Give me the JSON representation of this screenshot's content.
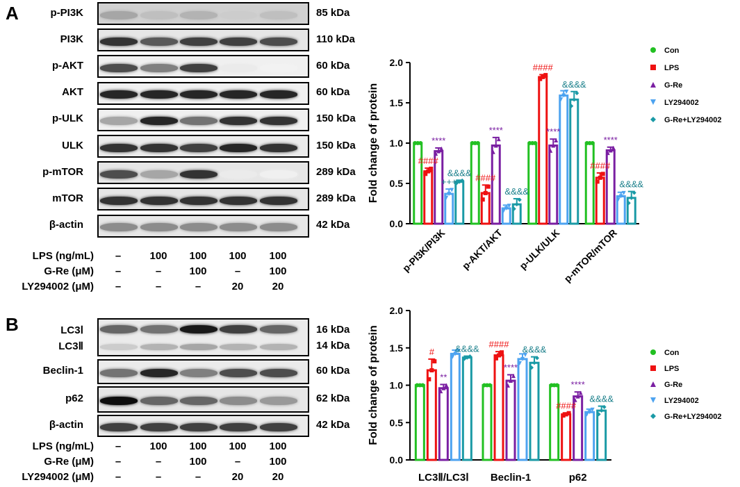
{
  "panel_a": {
    "letter": "A",
    "blots": [
      {
        "label": "p-PI3K",
        "kda": "85 kDa",
        "bands": [
          0.35,
          0.25,
          0.3,
          0.2,
          0.25
        ],
        "bg": 0.82
      },
      {
        "label": "PI3K",
        "kda": "110 kDa",
        "bands": [
          0.8,
          0.65,
          0.75,
          0.75,
          0.7
        ],
        "bg": 0.9
      },
      {
        "label": "p-AKT",
        "kda": "60 kDa",
        "bands": [
          0.7,
          0.5,
          0.75,
          0.08,
          0.05
        ],
        "bg": 0.94
      },
      {
        "label": "AKT",
        "kda": "60 kDa",
        "bands": [
          0.85,
          0.85,
          0.85,
          0.85,
          0.85
        ],
        "bg": 0.94
      },
      {
        "label": "p-ULK",
        "kda": "150 kDa",
        "bands": [
          0.35,
          0.85,
          0.55,
          0.8,
          0.8
        ],
        "bg": 0.94
      },
      {
        "label": "ULK",
        "kda": "150 kDa",
        "bands": [
          0.8,
          0.8,
          0.75,
          0.85,
          0.8
        ],
        "bg": 0.92
      },
      {
        "label": "p-mTOR",
        "kda": "289 kDa",
        "bands": [
          0.7,
          0.35,
          0.8,
          0.08,
          0.06
        ],
        "bg": 0.9
      },
      {
        "label": "mTOR",
        "kda": "289 kDa",
        "bands": [
          0.8,
          0.8,
          0.8,
          0.8,
          0.8
        ],
        "bg": 0.9
      },
      {
        "label": "β-actin",
        "kda": "42 kDa",
        "bands": [
          0.45,
          0.45,
          0.45,
          0.45,
          0.45
        ],
        "bg": 0.9
      }
    ],
    "treatments": [
      {
        "label": "LPS (ng/mL)",
        "values": [
          "–",
          "100",
          "100",
          "100",
          "100"
        ]
      },
      {
        "label": "G-Re (μM)",
        "values": [
          "–",
          "–",
          "100",
          "–",
          "100"
        ]
      },
      {
        "label": "LY294002 (μM)",
        "values": [
          "–",
          "–",
          "–",
          "20",
          "20"
        ]
      }
    ]
  },
  "panel_b": {
    "letter": "B",
    "blots": [
      {
        "label": "LC3Ⅰ",
        "label2": "LC3Ⅱ",
        "kda": "16 kDa",
        "kda2": "14 kDa",
        "bands": [
          0.6,
          0.55,
          0.9,
          0.75,
          0.6
        ],
        "bands2": [
          0.2,
          0.3,
          0.35,
          0.3,
          0.3
        ],
        "bg": 0.92
      },
      {
        "label": "Beclin-1",
        "kda": "60 kDa",
        "bands": [
          0.55,
          0.85,
          0.5,
          0.7,
          0.7
        ],
        "bg": 0.92
      },
      {
        "label": "p62",
        "kda": "62 kDa",
        "bands": [
          0.95,
          0.6,
          0.6,
          0.45,
          0.4
        ],
        "bg": 0.9
      },
      {
        "label": "β-actin",
        "kda": "42 kDa",
        "bands": [
          0.75,
          0.75,
          0.75,
          0.75,
          0.75
        ],
        "bg": 0.92
      }
    ],
    "treatments": [
      {
        "label": "LPS (ng/mL)",
        "values": [
          "–",
          "100",
          "100",
          "100",
          "100"
        ]
      },
      {
        "label": "G-Re (μM)",
        "values": [
          "–",
          "–",
          "100",
          "–",
          "100"
        ]
      },
      {
        "label": "LY294002 (μM)",
        "values": [
          "–",
          "–",
          "–",
          "20",
          "20"
        ]
      }
    ]
  },
  "chart_data": [
    {
      "type": "bar",
      "title": "",
      "xlabel": "",
      "ylabel": "Fold change of protein",
      "ylim": [
        0,
        2.0
      ],
      "yticks": [
        "0.0",
        "0.5",
        "1.0",
        "1.5",
        "2.0"
      ],
      "categories": [
        "p-PI3K/PI3K",
        "p-AKT/AKT",
        "p-ULK/ULK",
        "p-mTOR/mTOR"
      ],
      "legend_position": "right",
      "series": [
        {
          "name": "Con",
          "color": "#22c022",
          "marker": "circle",
          "values": [
            1.0,
            1.0,
            1.0,
            1.0
          ],
          "errors": [
            0,
            0,
            0,
            0
          ]
        },
        {
          "name": "LPS",
          "color": "#ee1111",
          "marker": "square",
          "values": [
            0.65,
            0.38,
            1.82,
            0.57
          ],
          "errors": [
            0.04,
            0.1,
            0.03,
            0.06
          ]
        },
        {
          "name": "G-Re",
          "color": "#7a1fa2",
          "marker": "triangle-up",
          "values": [
            0.9,
            0.97,
            0.97,
            0.91
          ],
          "errors": [
            0.04,
            0.1,
            0.08,
            0.04
          ]
        },
        {
          "name": "LY294002",
          "color": "#4da3f0",
          "marker": "triangle-down",
          "values": [
            0.37,
            0.19,
            1.59,
            0.34
          ],
          "errors": [
            0.06,
            0.04,
            0.06,
            0.05
          ]
        },
        {
          "name": "G-Re+LY294002",
          "color": "#1a9aa6",
          "marker": "diamond",
          "values": [
            0.52,
            0.24,
            1.54,
            0.32
          ],
          "errors": [
            0.02,
            0.07,
            0.1,
            0.08
          ]
        }
      ],
      "annotations": [
        {
          "category": 0,
          "series": 1,
          "text": "####",
          "color": "#ee1111"
        },
        {
          "category": 0,
          "series": 2,
          "text": "****",
          "color": "#7a1fa2"
        },
        {
          "category": 0,
          "series": 3,
          "text": "+++",
          "color": "#1a7f8a"
        },
        {
          "category": 0,
          "series": 4,
          "text": "&&&&",
          "color": "#1a7f8a"
        },
        {
          "category": 1,
          "series": 1,
          "text": "####",
          "color": "#ee1111"
        },
        {
          "category": 1,
          "series": 2,
          "text": "****",
          "color": "#7a1fa2"
        },
        {
          "category": 1,
          "series": 4,
          "text": "&&&&",
          "color": "#1a7f8a"
        },
        {
          "category": 2,
          "series": 1,
          "text": "####",
          "color": "#ee1111"
        },
        {
          "category": 2,
          "series": 2,
          "text": "****",
          "color": "#7a1fa2"
        },
        {
          "category": 2,
          "series": 4,
          "text": "&&&&",
          "color": "#1a7f8a"
        },
        {
          "category": 3,
          "series": 1,
          "text": "####",
          "color": "#ee1111"
        },
        {
          "category": 3,
          "series": 2,
          "text": "****",
          "color": "#7a1fa2"
        },
        {
          "category": 3,
          "series": 4,
          "text": "&&&&",
          "color": "#1a7f8a"
        }
      ]
    },
    {
      "type": "bar",
      "title": "",
      "xlabel": "",
      "ylabel": "Fold change of protein",
      "ylim": [
        0,
        2.0
      ],
      "yticks": [
        "0.0",
        "0.5",
        "1.0",
        "1.5",
        "2.0"
      ],
      "categories": [
        "LC3Ⅱ/LC3Ⅰ",
        "Beclin-1",
        "p62"
      ],
      "legend_position": "right",
      "series": [
        {
          "name": "Con",
          "color": "#22c022",
          "marker": "circle",
          "values": [
            1.0,
            1.0,
            1.0
          ],
          "errors": [
            0,
            0,
            0
          ]
        },
        {
          "name": "LPS",
          "color": "#ee1111",
          "marker": "square",
          "values": [
            1.2,
            1.4,
            0.61
          ],
          "errors": [
            0.15,
            0.05,
            0.02
          ]
        },
        {
          "name": "G-Re",
          "color": "#7a1fa2",
          "marker": "triangle-up",
          "values": [
            0.96,
            1.06,
            0.85
          ],
          "errors": [
            0.05,
            0.08,
            0.06
          ]
        },
        {
          "name": "LY294002",
          "color": "#4da3f0",
          "marker": "triangle-down",
          "values": [
            1.42,
            1.35,
            0.64
          ],
          "errors": [
            0.05,
            0.07,
            0.04
          ]
        },
        {
          "name": "G-Re+LY294002",
          "color": "#1a9aa6",
          "marker": "diamond",
          "values": [
            1.37,
            1.3,
            0.66
          ],
          "errors": [
            0.02,
            0.08,
            0.06
          ]
        }
      ],
      "annotations": [
        {
          "category": 0,
          "series": 1,
          "text": "#",
          "color": "#ee1111"
        },
        {
          "category": 0,
          "series": 2,
          "text": "**",
          "color": "#7a1fa2"
        },
        {
          "category": 0,
          "series": 4,
          "text": "&&&&",
          "color": "#1a7f8a"
        },
        {
          "category": 1,
          "series": 1,
          "text": "####",
          "color": "#ee1111"
        },
        {
          "category": 1,
          "series": 2,
          "text": "****",
          "color": "#7a1fa2"
        },
        {
          "category": 1,
          "series": 4,
          "text": "&&&&",
          "color": "#1a7f8a"
        },
        {
          "category": 2,
          "series": 1,
          "text": "####",
          "color": "#ee1111"
        },
        {
          "category": 2,
          "series": 2,
          "text": "****",
          "color": "#7a1fa2"
        },
        {
          "category": 2,
          "series": 4,
          "text": "&&&&",
          "color": "#1a7f8a"
        }
      ]
    }
  ]
}
